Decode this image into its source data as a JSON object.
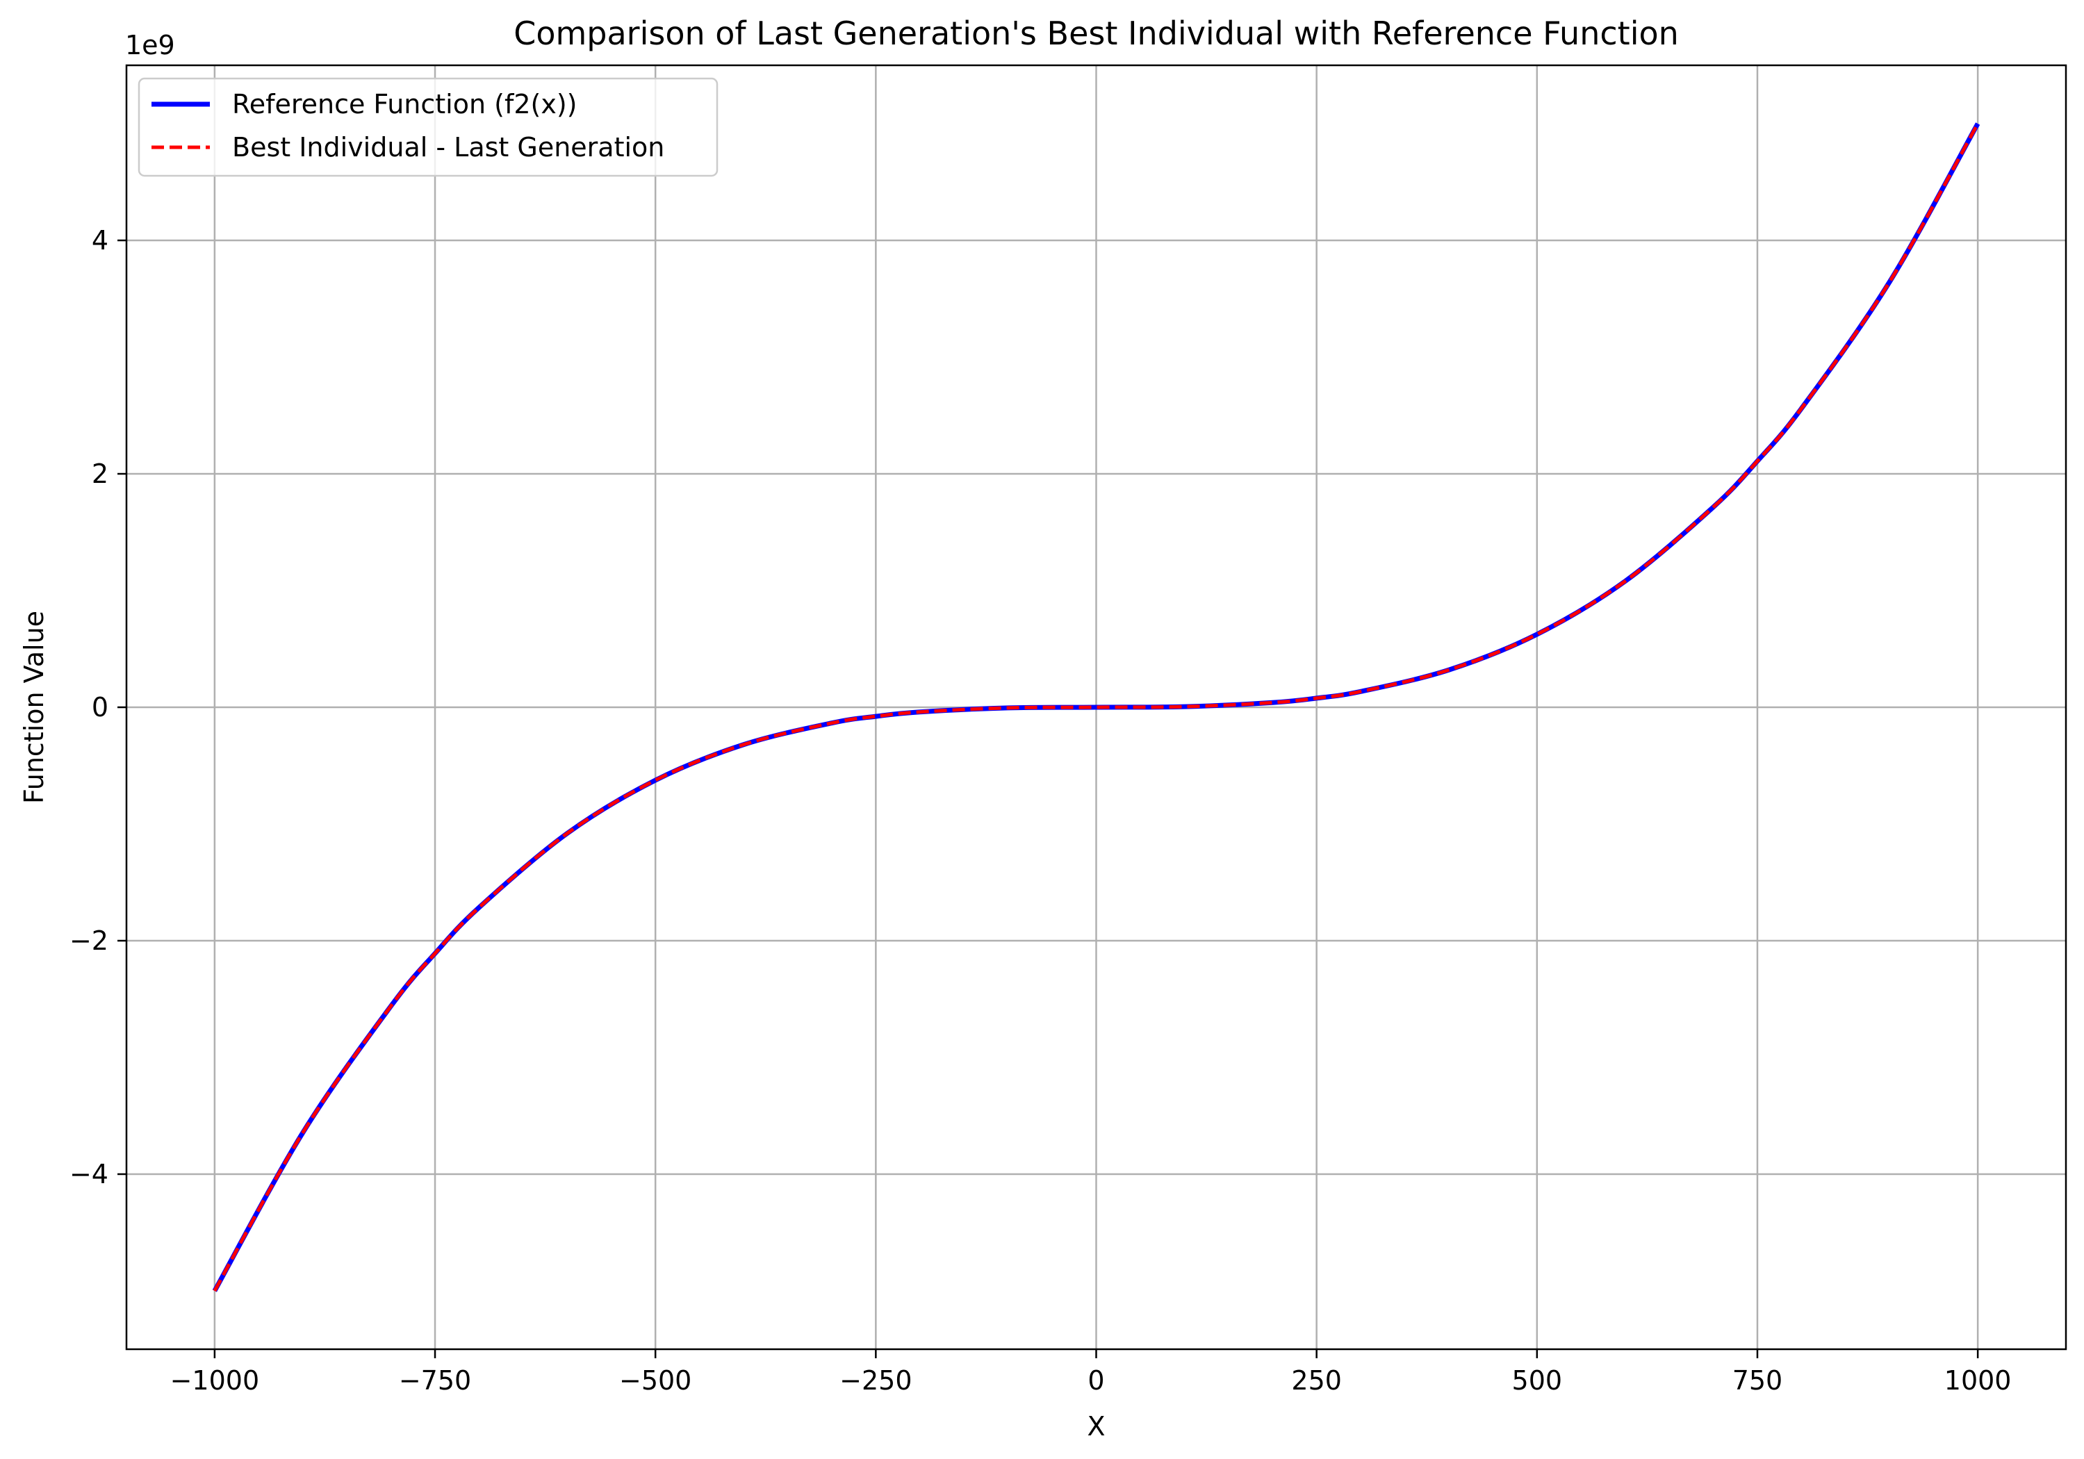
{
  "chart_data": {
    "type": "line",
    "title": "Comparison of Last Generation's Best Individual with Reference Function",
    "xlabel": "X",
    "ylabel": "Function Value",
    "y_offset_label": "1e9",
    "xlim": [
      -1100,
      1100
    ],
    "ylim": [
      -5.5,
      5.5
    ],
    "y_scale_multiplier": 1000000000,
    "grid": true,
    "legend_position": "top-left",
    "x_ticks": [
      -1000,
      -750,
      -500,
      -250,
      0,
      250,
      500,
      750,
      1000
    ],
    "x_tick_labels": [
      "−1000",
      "−750",
      "−500",
      "−250",
      "0",
      "250",
      "500",
      "750",
      "1000"
    ],
    "y_ticks": [
      -4,
      -2,
      0,
      2,
      4
    ],
    "y_tick_labels": [
      "−4",
      "−2",
      "0",
      "2",
      "4"
    ],
    "x": [
      -1000,
      -900,
      -800,
      -750,
      -700,
      -600,
      -500,
      -400,
      -300,
      -250,
      -200,
      -100,
      0,
      100,
      200,
      250,
      300,
      400,
      500,
      600,
      700,
      750,
      800,
      900,
      1000
    ],
    "series": [
      {
        "name": "Reference Function (f2(x))",
        "color": "#0000ff",
        "style": "solid",
        "values": [
          -5.0,
          -3.645,
          -2.56,
          -2.109,
          -1.715,
          -1.08,
          -0.625,
          -0.32,
          -0.135,
          -0.078,
          -0.04,
          -0.005,
          0.0,
          0.005,
          0.04,
          0.078,
          0.135,
          0.32,
          0.625,
          1.08,
          1.715,
          2.109,
          2.56,
          3.645,
          5.0
        ]
      },
      {
        "name": "Best Individual - Last Generation",
        "color": "#ff0000",
        "style": "dashed",
        "values": [
          -5.0,
          -3.645,
          -2.56,
          -2.109,
          -1.715,
          -1.08,
          -0.625,
          -0.32,
          -0.135,
          -0.078,
          -0.04,
          -0.005,
          0.0,
          0.005,
          0.04,
          0.078,
          0.135,
          0.32,
          0.625,
          1.08,
          1.715,
          2.109,
          2.56,
          3.645,
          5.0
        ]
      }
    ]
  }
}
